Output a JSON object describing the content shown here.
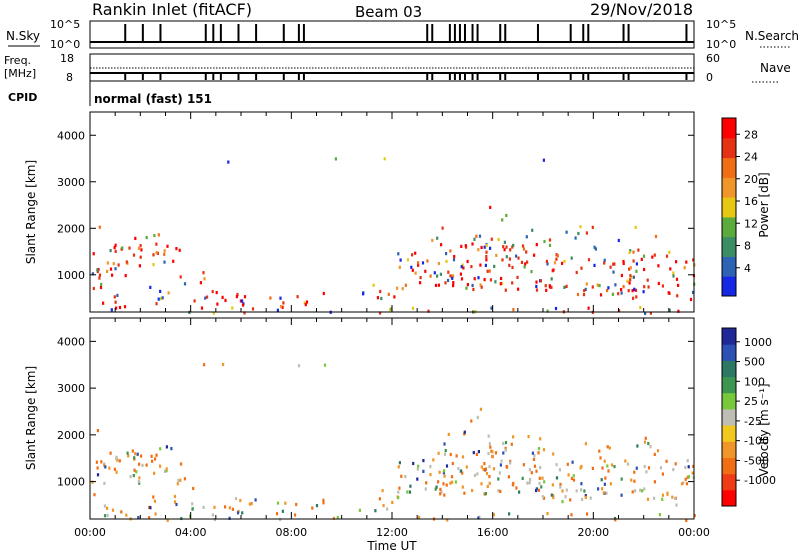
{
  "header": {
    "title": "Rankin Inlet (fitACF)",
    "beam": "Beam 03",
    "date": "29/Nov/2018"
  },
  "aux_labels": {
    "nsky": "N.Sky",
    "nsearch": "N.Search",
    "freq": "Freq.",
    "mhz": "[MHz]",
    "nave": "Nave",
    "cpid": "CPID",
    "cpid_text": "normal (fast) 151",
    "nsky_ticks": [
      "10^5",
      "10^0"
    ],
    "nsearch_ticks": [
      "10^5",
      "10^0"
    ],
    "freq_ticks": [
      "18",
      "8"
    ],
    "nave_ticks": [
      "60",
      "0"
    ]
  },
  "chart_data": [
    {
      "type": "heatmap",
      "name": "power",
      "ylabel": "Slant Range [km]",
      "yticks": [
        "1000",
        "2000",
        "3000",
        "4000"
      ],
      "ylim": [
        200,
        4500
      ],
      "xlim_hours": [
        0,
        24
      ],
      "colorbar_label": "Power [dB]",
      "colorbar_ticks": [
        "4",
        "8",
        "12",
        "16",
        "20",
        "24",
        "28"
      ],
      "colorbar_colors": [
        "#1428e6",
        "#2d62b4",
        "#3c8c64",
        "#5aaa3c",
        "#e6c814",
        "#f09628",
        "#f06e14",
        "#e63214",
        "#ff0000"
      ]
    },
    {
      "type": "heatmap",
      "name": "velocity",
      "ylabel": "Slant Range [km]",
      "yticks": [
        "1000",
        "2000",
        "3000",
        "4000"
      ],
      "ylim": [
        200,
        4500
      ],
      "xlim_hours": [
        0,
        24
      ],
      "xlabel": "Time UT",
      "xticks": [
        "00:00",
        "04:00",
        "08:00",
        "12:00",
        "16:00",
        "20:00",
        "00:00"
      ],
      "colorbar_label": "Velocity [m s⁻¹]",
      "colorbar_ticks": [
        "1000",
        "500",
        "100",
        "25",
        "-25",
        "-100",
        "-500",
        "-1000"
      ],
      "colorbar_colors": [
        "#1e2896",
        "#2d50b4",
        "#2d7864",
        "#3c9650",
        "#78c83c",
        "#bebeb4",
        "#f0c81e",
        "#f09628",
        "#f06e14",
        "#f03c14",
        "#ff0000"
      ]
    }
  ]
}
